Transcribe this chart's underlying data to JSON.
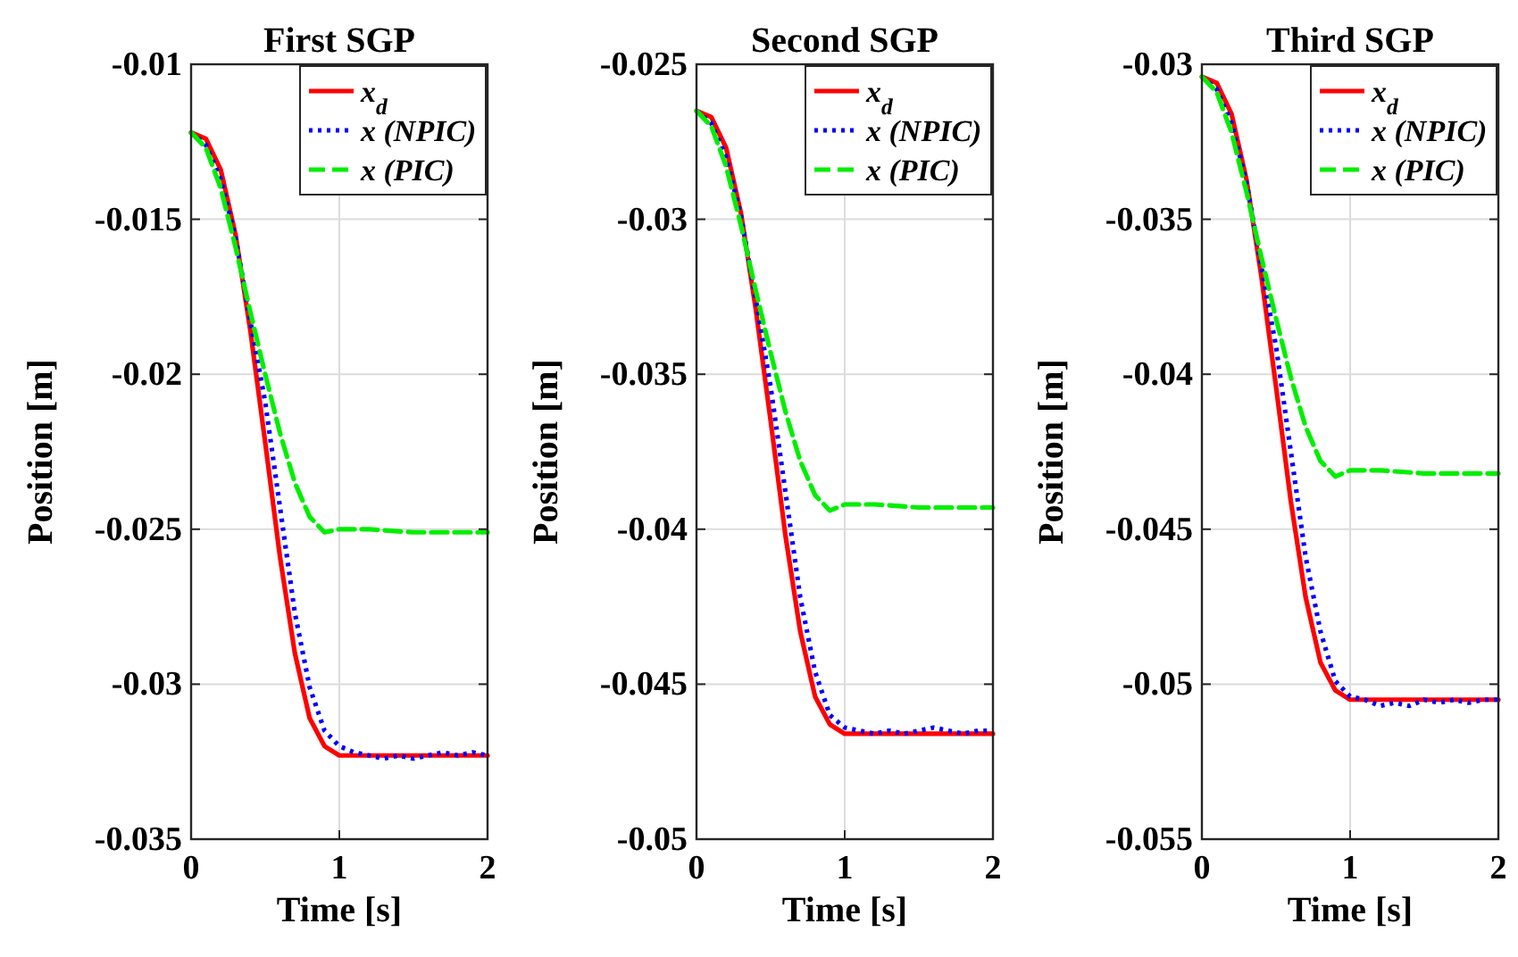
{
  "chart_data": [
    {
      "type": "line",
      "title": "First SGP",
      "xlabel": "Time [s]",
      "ylabel": "Position [m]",
      "xlim": [
        0,
        2
      ],
      "xticks": [
        0,
        1,
        2
      ],
      "ylim": [
        -0.035,
        -0.01
      ],
      "yticks": [
        -0.035,
        -0.03,
        -0.025,
        -0.02,
        -0.015,
        -0.01
      ],
      "grid": true,
      "legend": "top right",
      "marker": "none",
      "series": [
        {
          "name": "x$_{d}$",
          "color": "#ff0000",
          "line_style": "solid",
          "x": [
            0,
            0.1,
            0.2,
            0.3,
            0.4,
            0.5,
            0.6,
            0.7,
            0.8,
            0.9,
            1,
            2
          ],
          "values": [
            -0.0122,
            -0.0124,
            -0.0134,
            -0.0155,
            -0.0186,
            -0.0222,
            -0.0259,
            -0.029,
            -0.0311,
            -0.032,
            -0.0323,
            -0.0323
          ]
        },
        {
          "name": "x (NPIC)",
          "color": "#0000ff",
          "line_style": "dotted",
          "x": [
            0,
            0.1,
            0.2,
            0.3,
            0.4,
            0.5,
            0.6,
            0.7,
            0.8,
            0.9,
            1,
            1.1,
            1.2,
            1.3,
            1.4,
            1.5,
            1.6,
            1.7,
            1.8,
            1.9,
            2
          ],
          "values": [
            -0.0122,
            -0.0126,
            -0.0137,
            -0.0156,
            -0.0183,
            -0.0209,
            -0.0243,
            -0.0277,
            -0.0301,
            -0.0315,
            -0.032,
            -0.0322,
            -0.0323,
            -0.0324,
            -0.0323,
            -0.0324,
            -0.0323,
            -0.0322,
            -0.0323,
            -0.0322,
            -0.0323
          ]
        },
        {
          "name": "x (PIC)",
          "color": "#00ee00",
          "line_style": "dashed",
          "x": [
            0,
            0.1,
            0.2,
            0.3,
            0.4,
            0.5,
            0.6,
            0.7,
            0.8,
            0.9,
            1,
            1.2,
            1.5,
            2
          ],
          "values": [
            -0.0122,
            -0.0127,
            -0.014,
            -0.0159,
            -0.018,
            -0.02,
            -0.0219,
            -0.0235,
            -0.0246,
            -0.0251,
            -0.025,
            -0.025,
            -0.0251,
            -0.0251
          ]
        }
      ]
    },
    {
      "type": "line",
      "title": "Second SGP",
      "xlabel": "Time [s]",
      "ylabel": "Position [m]",
      "xlim": [
        0,
        2
      ],
      "xticks": [
        0,
        1,
        2
      ],
      "ylim": [
        -0.05,
        -0.025
      ],
      "yticks": [
        -0.05,
        -0.045,
        -0.04,
        -0.035,
        -0.03,
        -0.025
      ],
      "grid": true,
      "legend": "top right",
      "marker": "none",
      "series": [
        {
          "name": "x$_{d}$",
          "color": "#ff0000",
          "line_style": "solid",
          "x": [
            0,
            0.1,
            0.2,
            0.3,
            0.4,
            0.5,
            0.6,
            0.7,
            0.8,
            0.9,
            1,
            2
          ],
          "values": [
            -0.0265,
            -0.0267,
            -0.0277,
            -0.0298,
            -0.0329,
            -0.0365,
            -0.0402,
            -0.0433,
            -0.0454,
            -0.0463,
            -0.0466,
            -0.0466
          ]
        },
        {
          "name": "x (NPIC)",
          "color": "#0000ff",
          "line_style": "dotted",
          "x": [
            0,
            0.1,
            0.2,
            0.3,
            0.4,
            0.5,
            0.6,
            0.7,
            0.8,
            0.9,
            1,
            1.1,
            1.2,
            1.3,
            1.4,
            1.5,
            1.6,
            1.7,
            1.8,
            1.9,
            2
          ],
          "values": [
            -0.0265,
            -0.0269,
            -0.028,
            -0.0299,
            -0.0326,
            -0.0354,
            -0.0388,
            -0.0422,
            -0.0446,
            -0.046,
            -0.0464,
            -0.0465,
            -0.0466,
            -0.0465,
            -0.0466,
            -0.0465,
            -0.0464,
            -0.0465,
            -0.0466,
            -0.0465,
            -0.0465
          ]
        },
        {
          "name": "x (PIC)",
          "color": "#00ee00",
          "line_style": "dashed",
          "x": [
            0,
            0.1,
            0.2,
            0.3,
            0.4,
            0.5,
            0.6,
            0.7,
            0.8,
            0.9,
            1,
            1.2,
            1.5,
            2
          ],
          "values": [
            -0.0265,
            -0.027,
            -0.0283,
            -0.0302,
            -0.0323,
            -0.0343,
            -0.0362,
            -0.0378,
            -0.0389,
            -0.0394,
            -0.0392,
            -0.0392,
            -0.0393,
            -0.0393
          ]
        }
      ]
    },
    {
      "type": "line",
      "title": "Third SGP",
      "xlabel": "Time [s]",
      "ylabel": "Position [m]",
      "xlim": [
        0,
        2
      ],
      "xticks": [
        0,
        1,
        2
      ],
      "ylim": [
        -0.055,
        -0.03
      ],
      "yticks": [
        -0.055,
        -0.05,
        -0.045,
        -0.04,
        -0.035,
        -0.03
      ],
      "grid": true,
      "legend": "top right",
      "marker": "none",
      "series": [
        {
          "name": "x$_{d}$",
          "color": "#ff0000",
          "line_style": "solid",
          "x": [
            0,
            0.1,
            0.2,
            0.3,
            0.4,
            0.5,
            0.6,
            0.7,
            0.8,
            0.9,
            1,
            2
          ],
          "values": [
            -0.0304,
            -0.0306,
            -0.0316,
            -0.0337,
            -0.0368,
            -0.0404,
            -0.0441,
            -0.0472,
            -0.0493,
            -0.0502,
            -0.0505,
            -0.0505
          ]
        },
        {
          "name": "x (NPIC)",
          "color": "#0000ff",
          "line_style": "dotted",
          "x": [
            0,
            0.1,
            0.2,
            0.3,
            0.4,
            0.5,
            0.6,
            0.7,
            0.8,
            0.9,
            1,
            1.1,
            1.2,
            1.3,
            1.4,
            1.5,
            1.6,
            1.7,
            1.8,
            1.9,
            2
          ],
          "values": [
            -0.0304,
            -0.0308,
            -0.0319,
            -0.0338,
            -0.0365,
            -0.0391,
            -0.0425,
            -0.0459,
            -0.0483,
            -0.0499,
            -0.0504,
            -0.0505,
            -0.0507,
            -0.0506,
            -0.0507,
            -0.0505,
            -0.0506,
            -0.0505,
            -0.0506,
            -0.0505,
            -0.0505
          ]
        },
        {
          "name": "x (PIC)",
          "color": "#00ee00",
          "line_style": "dashed",
          "x": [
            0,
            0.1,
            0.2,
            0.3,
            0.4,
            0.5,
            0.6,
            0.7,
            0.8,
            0.9,
            1,
            1.2,
            1.5,
            2
          ],
          "values": [
            -0.0304,
            -0.0309,
            -0.0322,
            -0.0341,
            -0.0362,
            -0.0382,
            -0.0401,
            -0.0417,
            -0.0428,
            -0.0433,
            -0.0431,
            -0.0431,
            -0.0432,
            -0.0432
          ]
        }
      ]
    }
  ]
}
